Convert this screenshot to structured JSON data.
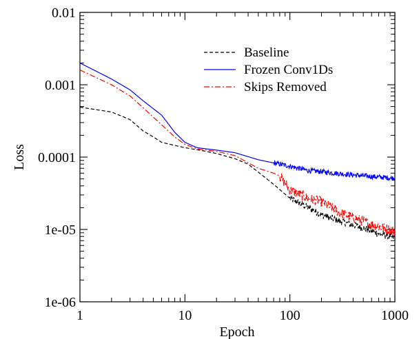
{
  "chart_data": {
    "type": "line",
    "xlabel": "Epoch",
    "ylabel": "Loss",
    "xscale": "log",
    "yscale": "log",
    "xlim": [
      1,
      1000
    ],
    "ylim": [
      1e-06,
      0.01
    ],
    "x_ticks": [
      {
        "value": 1,
        "label": "1"
      },
      {
        "value": 10,
        "label": "10"
      },
      {
        "value": 100,
        "label": "100"
      },
      {
        "value": 1000,
        "label": "1000"
      }
    ],
    "y_ticks": [
      {
        "value": 1e-06,
        "label": "1e-06"
      },
      {
        "value": 1e-05,
        "label": "1e-05"
      },
      {
        "value": 0.0001,
        "label": "0.0001"
      },
      {
        "value": 0.001,
        "label": "0.001"
      },
      {
        "value": 0.01,
        "label": "0.01"
      }
    ],
    "grid": false,
    "legend_position": "top-right",
    "series": [
      {
        "name": "Baseline",
        "color": "#000000",
        "dash": "dashed",
        "noise": 0.05,
        "noise_start": 100,
        "points": [
          [
            1,
            0.00049
          ],
          [
            2,
            0.00042
          ],
          [
            3,
            0.00033
          ],
          [
            4,
            0.00023
          ],
          [
            5,
            0.00019
          ],
          [
            6,
            0.00016
          ],
          [
            8,
            0.000145
          ],
          [
            10,
            0.000135
          ],
          [
            15,
            0.000122
          ],
          [
            20,
            0.000112
          ],
          [
            30,
            9.5e-05
          ],
          [
            40,
            8e-05
          ],
          [
            50,
            6.2e-05
          ],
          [
            70,
            4.2e-05
          ],
          [
            100,
            2.7e-05
          ],
          [
            150,
            2e-05
          ],
          [
            200,
            1.6e-05
          ],
          [
            300,
            1.3e-05
          ],
          [
            500,
            1.05e-05
          ],
          [
            700,
            8.8e-06
          ],
          [
            1000,
            7.7e-06
          ]
        ]
      },
      {
        "name": "Frozen Conv1Ds",
        "color": "#0000ff",
        "dash": "solid",
        "noise": 0.035,
        "noise_start": 70,
        "points": [
          [
            1,
            0.002
          ],
          [
            2,
            0.0012
          ],
          [
            3,
            0.00085
          ],
          [
            4,
            0.0006
          ],
          [
            6,
            0.00038
          ],
          [
            8,
            0.00022
          ],
          [
            10,
            0.00016
          ],
          [
            13,
            0.000135
          ],
          [
            20,
            0.000125
          ],
          [
            30,
            0.000115
          ],
          [
            50,
            9.2e-05
          ],
          [
            70,
            8.3e-05
          ],
          [
            100,
            7.5e-05
          ],
          [
            150,
            6.5e-05
          ],
          [
            200,
            6.3e-05
          ],
          [
            300,
            5.9e-05
          ],
          [
            500,
            5.5e-05
          ],
          [
            700,
            5.3e-05
          ],
          [
            1000,
            5.1e-05
          ]
        ]
      },
      {
        "name": "Skips Removed",
        "color": "#ff0000",
        "dash": "dashdot",
        "noise": 0.07,
        "noise_start": 80,
        "points": [
          [
            1,
            0.0016
          ],
          [
            2,
            0.001
          ],
          [
            3,
            0.0007
          ],
          [
            4,
            0.00048
          ],
          [
            6,
            0.00028
          ],
          [
            8,
            0.00019
          ],
          [
            10,
            0.00015
          ],
          [
            13,
            0.00013
          ],
          [
            20,
            0.00012
          ],
          [
            30,
            0.000105
          ],
          [
            50,
            7e-05
          ],
          [
            70,
            6e-05
          ],
          [
            80,
            5.5e-05
          ],
          [
            100,
            3.5e-05
          ],
          [
            150,
            2.7e-05
          ],
          [
            200,
            2.4e-05
          ],
          [
            300,
            1.7e-05
          ],
          [
            500,
            1.3e-05
          ],
          [
            700,
            1.1e-05
          ],
          [
            1000,
            9.5e-06
          ]
        ]
      }
    ]
  }
}
